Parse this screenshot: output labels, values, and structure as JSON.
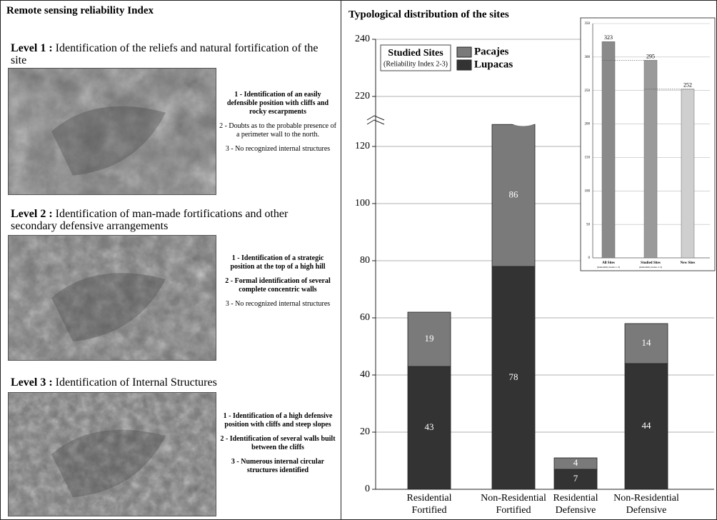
{
  "left_panel": {
    "title": "Remote sensing reliability Index",
    "levels": [
      {
        "label": "Level 1 :",
        "text": "Identification of the reliefs and natural fortification of the site",
        "items": [
          {
            "text": "1 - Identification of an easily defensible position with cliffs and rocky escarpments",
            "bold": true
          },
          {
            "text": "2 - Doubts as to the probable presence of a perimeter wall to the north.",
            "bold": false
          },
          {
            "text": "3 - No recognized internal structures",
            "bold": false
          }
        ]
      },
      {
        "label": "Level 2 :",
        "text": "Identification of man-made fortifications and other secondary defensive arrangements",
        "items": [
          {
            "text": "1 - Identification of a strategic position at the top of a high hill",
            "bold": true
          },
          {
            "text": "2 - Formal identification of several complete concentric walls",
            "bold": true
          },
          {
            "text": "3 - No recognized internal structures",
            "bold": false
          }
        ]
      },
      {
        "label": "Level 3 :",
        "text": "Identification of Internal Structures",
        "items": [
          {
            "text": "1 - Identification of a high defensive position with cliffs and steep slopes",
            "bold": true
          },
          {
            "text": "2 - Identification of several walls built between the cliffs",
            "bold": true
          },
          {
            "text": "3 - Numerous internal circular structures identified",
            "bold": true
          }
        ]
      }
    ]
  },
  "chart_data": [
    {
      "type": "stacked_bar",
      "title": "Typological distribution of the sites",
      "categories": [
        [
          "Residential",
          "Fortified"
        ],
        [
          "Non-Residential",
          "Fortified"
        ],
        [
          "Residential",
          "Defensive"
        ],
        [
          "Non-Residential",
          "Defensive"
        ]
      ],
      "series": [
        {
          "name": "Lupacas",
          "color": "#333333",
          "values": [
            43,
            78,
            7,
            44
          ]
        },
        {
          "name": "Pacajes",
          "color": "#7a7a7a",
          "values": [
            19,
            86,
            4,
            14
          ]
        }
      ],
      "legend_title": "Studied Sites",
      "legend_subtitle": "(Reliability Index 2-3)",
      "ylim": [
        0,
        240
      ],
      "yticks": [
        0,
        20,
        40,
        60,
        80,
        100,
        120,
        220,
        240
      ],
      "axis_break": [
        120,
        220
      ],
      "grid": true
    },
    {
      "type": "bar",
      "categories": [
        "All Sites",
        "Studied Sites",
        "New Sites"
      ],
      "category_notes": [
        "(Reliability Index 1-3)",
        "(Reliability Index 2-3)",
        null
      ],
      "values": [
        323,
        295,
        252
      ],
      "colors": [
        "#8a8a8a",
        "#9a9a9a",
        "#cfcfcf"
      ],
      "ylim": [
        0,
        350
      ],
      "yticks": [
        0,
        50,
        100,
        150,
        200,
        250,
        300,
        350
      ],
      "grid": true
    }
  ]
}
